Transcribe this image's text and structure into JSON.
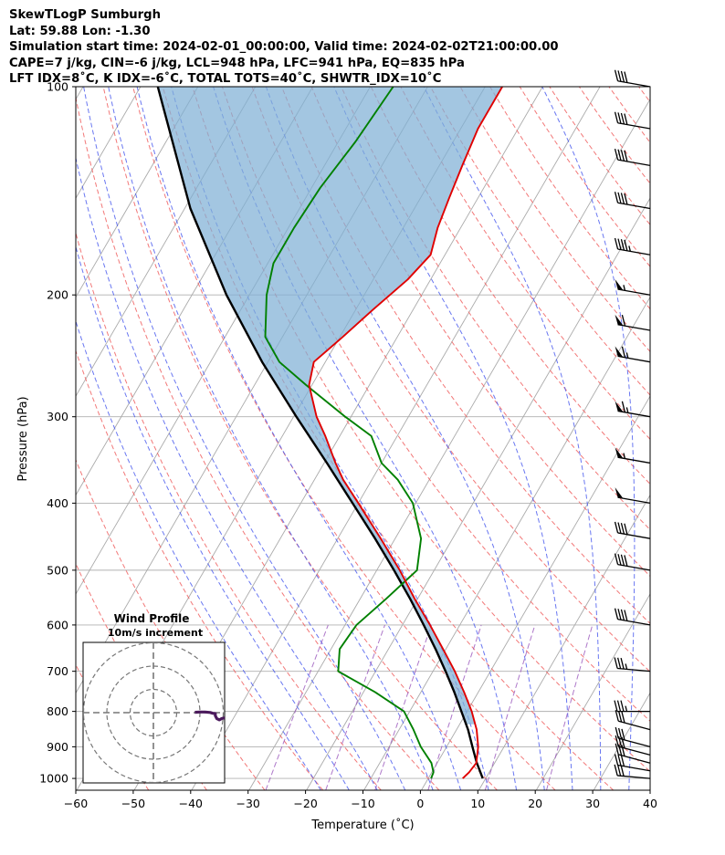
{
  "header": {
    "line1": "SkewTLogP Sumburgh",
    "line2": "Lat: 59.88   Lon: -1.30",
    "line3": "Simulation start time: 2024-02-01_00:00:00, Valid time: 2024-02-02T21:00:00.00",
    "line4": "CAPE=7 j/kg, CIN=-6 j/kg, LCL=948 hPa, LFC=941 hPa, EQ=835 hPa",
    "line5": "LFT IDX=8˚C, K IDX=-6˚C, TOTAL TOTS=40˚C, SHWTR_IDX=10˚C"
  },
  "chart_data": {
    "type": "skew-t log-p",
    "xlabel": "Temperature (˚C)",
    "ylabel": "Pressure (hPa)",
    "xlim": [
      -60,
      40
    ],
    "plim": [
      1040,
      100
    ],
    "x_ticks": [
      "−60",
      "−50",
      "−40",
      "−30",
      "−20",
      "−10",
      "0",
      "10",
      "20",
      "30",
      "40"
    ],
    "x_tick_values": [
      -60,
      -50,
      -40,
      -30,
      -20,
      -10,
      0,
      10,
      20,
      30,
      40
    ],
    "p_ticks": [
      "1000",
      "900",
      "800",
      "700",
      "600",
      "500",
      "400",
      "300",
      "200",
      "100"
    ],
    "p_tick_values": [
      1000,
      900,
      800,
      700,
      600,
      500,
      400,
      300,
      200,
      100
    ],
    "colors": {
      "temperature": "#e00000",
      "dewpoint": "#008000",
      "parcel": "#000000",
      "cape_fill": "#7fb0d6",
      "isotherm": "#aaaaaa",
      "dry_adiabat": "#f06060",
      "moist_adiabat": "#4455ee",
      "mixing_ratio": "#9955bb"
    },
    "temperature": {
      "p": [
        1000,
        980,
        950,
        900,
        850,
        800,
        750,
        700,
        650,
        600,
        550,
        500,
        450,
        400,
        370,
        350,
        320,
        300,
        270,
        250,
        230,
        210,
        190,
        175,
        160,
        145,
        130,
        115,
        100
      ],
      "t": [
        6,
        6.5,
        6.8,
        5.5,
        3.5,
        0.8,
        -2.5,
        -6.2,
        -10.5,
        -15.2,
        -20.5,
        -26,
        -32.5,
        -40,
        -45,
        -48,
        -52.5,
        -56,
        -60.5,
        -62,
        -59.5,
        -57,
        -54,
        -52.5,
        -54,
        -55,
        -56,
        -57,
        -57
      ]
    },
    "dewpoint": {
      "p": [
        1000,
        980,
        950,
        900,
        850,
        800,
        750,
        700,
        650,
        600,
        550,
        500,
        450,
        400,
        370,
        350,
        320,
        300,
        270,
        250,
        230,
        200,
        180,
        160,
        140,
        120,
        100
      ],
      "t": [
        0.5,
        0.3,
        -1,
        -4.5,
        -7.5,
        -11,
        -18,
        -26.5,
        -28.5,
        -28,
        -25.5,
        -23,
        -25.5,
        -30.5,
        -35.5,
        -40,
        -44.5,
        -51,
        -61,
        -68,
        -73,
        -77,
        -79,
        -79,
        -78.5,
        -77,
        -76
      ]
    },
    "parcel": {
      "p": [
        1000,
        948,
        900,
        850,
        800,
        750,
        700,
        650,
        600,
        550,
        500,
        450,
        400,
        350,
        300,
        250,
        200,
        150,
        100
      ],
      "t": [
        9.5,
        6.8,
        4.5,
        2,
        -1,
        -4.2,
        -7.8,
        -11.8,
        -16.3,
        -21.3,
        -27,
        -33.5,
        -41,
        -49.5,
        -59.5,
        -71,
        -84,
        -99,
        -117
      ]
    },
    "cape": {
      "j_per_kg": 7,
      "lcl_hpa": 948,
      "lfc_hpa": 941,
      "eq_hpa": 835
    },
    "wind_barbs": [
      {
        "p": 1000,
        "speed_kt": 30,
        "dir_deg": 275
      },
      {
        "p": 975,
        "speed_kt": 30,
        "dir_deg": 280
      },
      {
        "p": 950,
        "speed_kt": 30,
        "dir_deg": 285
      },
      {
        "p": 925,
        "speed_kt": 30,
        "dir_deg": 285
      },
      {
        "p": 900,
        "speed_kt": 30,
        "dir_deg": 285
      },
      {
        "p": 850,
        "speed_kt": 30,
        "dir_deg": 285
      },
      {
        "p": 800,
        "speed_kt": 35,
        "dir_deg": 270
      },
      {
        "p": 700,
        "speed_kt": 35,
        "dir_deg": 275
      },
      {
        "p": 600,
        "speed_kt": 40,
        "dir_deg": 280
      },
      {
        "p": 500,
        "speed_kt": 40,
        "dir_deg": 280
      },
      {
        "p": 450,
        "speed_kt": 40,
        "dir_deg": 280
      },
      {
        "p": 400,
        "speed_kt": 50,
        "dir_deg": 280
      },
      {
        "p": 350,
        "speed_kt": 55,
        "dir_deg": 280
      },
      {
        "p": 300,
        "speed_kt": 65,
        "dir_deg": 280
      },
      {
        "p": 250,
        "speed_kt": 65,
        "dir_deg": 280
      },
      {
        "p": 225,
        "speed_kt": 60,
        "dir_deg": 280
      },
      {
        "p": 200,
        "speed_kt": 55,
        "dir_deg": 280
      },
      {
        "p": 175,
        "speed_kt": 45,
        "dir_deg": 280
      },
      {
        "p": 150,
        "speed_kt": 40,
        "dir_deg": 280
      },
      {
        "p": 130,
        "speed_kt": 40,
        "dir_deg": 280
      },
      {
        "p": 115,
        "speed_kt": 40,
        "dir_deg": 280
      },
      {
        "p": 100,
        "speed_kt": 40,
        "dir_deg": 280
      }
    ],
    "hodograph": {
      "title": "Wind Profile",
      "subtitle": "10m/s increment",
      "u_ms": [
        9,
        10,
        11,
        12,
        12.5,
        13,
        13,
        13.3,
        13.8,
        14.2,
        15.5,
        16.5
      ],
      "v_ms": [
        0.2,
        0.3,
        0.3,
        0.1,
        -0.3,
        -0.5,
        -1.5,
        -3,
        -3.6,
        -3,
        -2.2,
        -1.2
      ]
    }
  }
}
